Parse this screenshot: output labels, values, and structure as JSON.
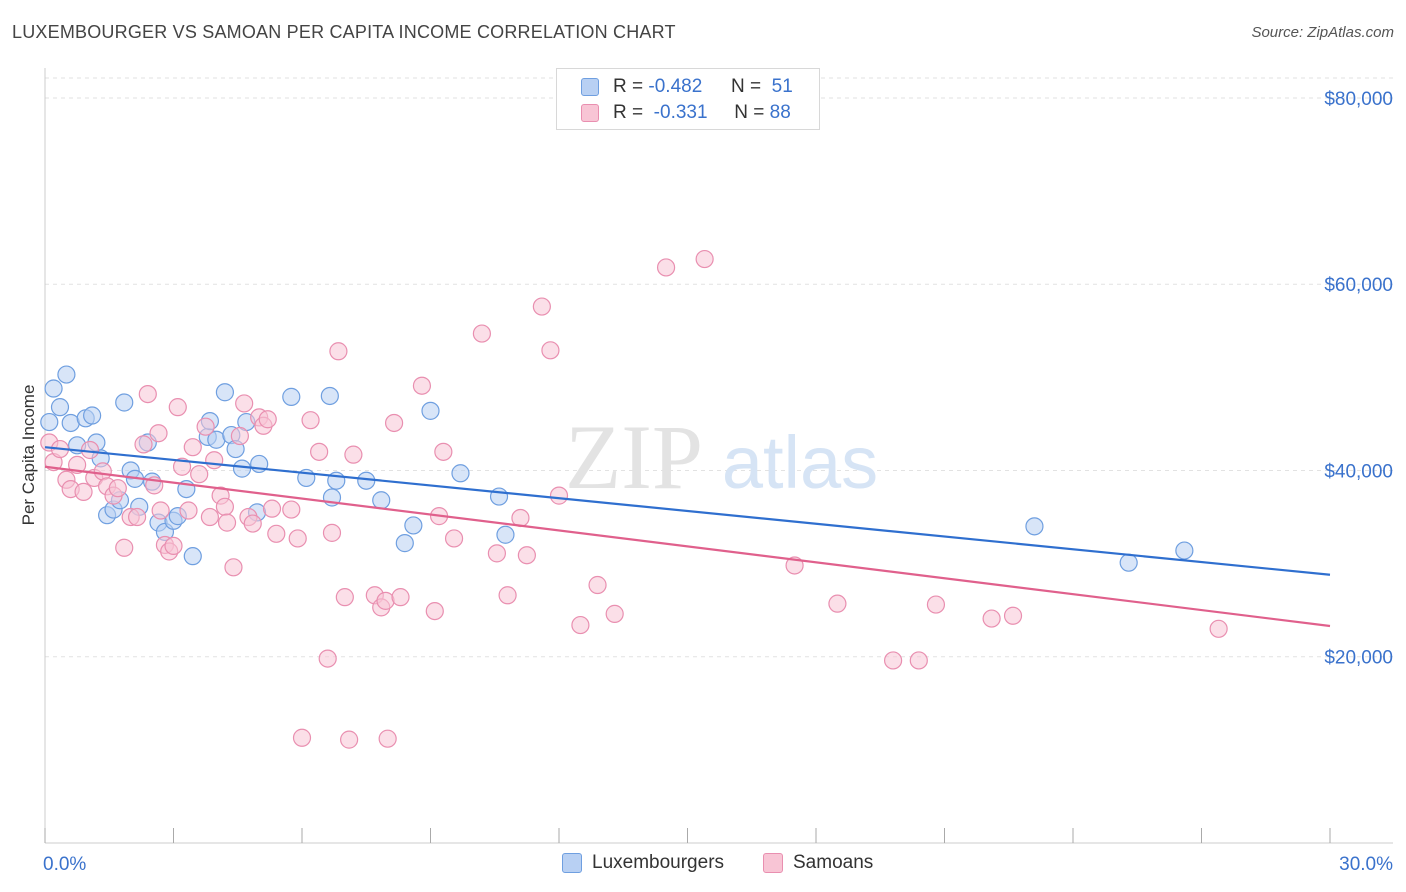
{
  "title": "LUXEMBOURGER VS SAMOAN PER CAPITA INCOME CORRELATION CHART",
  "source": "Source: ZipAtlas.com",
  "watermark": {
    "zip": "ZIP",
    "atlas": "atlas"
  },
  "legend": {
    "rows": [
      {
        "r_label": "R =",
        "r_value": "-0.482",
        "n_label": "N =",
        "n_value": "51",
        "fill": "#b8d0f3",
        "stroke": "#6f9fe0"
      },
      {
        "r_label": "R =",
        "r_value": "-0.331",
        "n_label": "N =",
        "n_value": "88",
        "fill": "#f8c5d5",
        "stroke": "#e98fb0"
      }
    ]
  },
  "bottom_legend": [
    {
      "label": "Luxembourgers",
      "fill": "#b8d0f3",
      "stroke": "#6f9fe0"
    },
    {
      "label": "Samoans",
      "fill": "#f8c5d5",
      "stroke": "#e98fb0"
    }
  ],
  "chart_data": {
    "type": "scatter",
    "title": "LUXEMBOURGER VS SAMOAN PER CAPITA INCOME CORRELATION CHART",
    "xlabel": "",
    "ylabel": "Per Capita Income",
    "xlim": [
      0,
      30
    ],
    "ylim": [
      0,
      83000
    ],
    "x_tick_labels": [
      "0.0%",
      "30.0%"
    ],
    "y_ticks": [
      20000,
      40000,
      60000,
      80000
    ],
    "y_tick_labels": [
      "$20,000",
      "$40,000",
      "$60,000",
      "$80,000"
    ],
    "grid": true,
    "series": [
      {
        "name": "Luxembourgers",
        "color": "#6f9fe0",
        "fill": "#b8d0f3",
        "line_color": "#2f6fcf",
        "trend": {
          "x": [
            0,
            30
          ],
          "y": [
            42500,
            28800
          ]
        },
        "points": [
          [
            0.2,
            48800
          ],
          [
            0.35,
            46800
          ],
          [
            0.5,
            50300
          ],
          [
            0.6,
            45100
          ],
          [
            0.75,
            42700
          ],
          [
            0.95,
            45600
          ],
          [
            1.1,
            45900
          ],
          [
            1.2,
            43000
          ],
          [
            1.3,
            41300
          ],
          [
            1.45,
            35200
          ],
          [
            1.6,
            35800
          ],
          [
            1.75,
            36800
          ],
          [
            1.85,
            47300
          ],
          [
            2.0,
            40000
          ],
          [
            2.1,
            39100
          ],
          [
            2.2,
            36100
          ],
          [
            2.4,
            43000
          ],
          [
            2.5,
            38800
          ],
          [
            2.65,
            34400
          ],
          [
            2.8,
            33400
          ],
          [
            3.0,
            34600
          ],
          [
            3.1,
            35100
          ],
          [
            3.3,
            38000
          ],
          [
            3.45,
            30800
          ],
          [
            3.8,
            43600
          ],
          [
            3.85,
            45300
          ],
          [
            4.0,
            43300
          ],
          [
            4.2,
            48400
          ],
          [
            4.35,
            43800
          ],
          [
            4.45,
            42300
          ],
          [
            4.6,
            40200
          ],
          [
            4.7,
            45200
          ],
          [
            4.95,
            35500
          ],
          [
            5.0,
            40700
          ],
          [
            5.75,
            47900
          ],
          [
            6.1,
            39200
          ],
          [
            6.65,
            48000
          ],
          [
            6.7,
            37100
          ],
          [
            6.8,
            38900
          ],
          [
            7.5,
            38900
          ],
          [
            7.85,
            36800
          ],
          [
            8.4,
            32200
          ],
          [
            8.6,
            34100
          ],
          [
            9.0,
            46400
          ],
          [
            9.7,
            39700
          ],
          [
            10.6,
            37200
          ],
          [
            10.75,
            33100
          ],
          [
            23.1,
            34000
          ],
          [
            25.3,
            30100
          ],
          [
            26.6,
            31400
          ],
          [
            0.1,
            45200
          ]
        ]
      },
      {
        "name": "Samoans",
        "color": "#e98fb0",
        "fill": "#f8c5d5",
        "line_color": "#e0608c",
        "trend": {
          "x": [
            0,
            30
          ],
          "y": [
            40400,
            23300
          ]
        },
        "points": [
          [
            0.1,
            43000
          ],
          [
            0.2,
            40900
          ],
          [
            0.35,
            42300
          ],
          [
            0.5,
            39000
          ],
          [
            0.6,
            38000
          ],
          [
            0.75,
            40600
          ],
          [
            0.9,
            37700
          ],
          [
            1.05,
            42200
          ],
          [
            1.15,
            39200
          ],
          [
            1.35,
            39900
          ],
          [
            1.45,
            38300
          ],
          [
            1.6,
            37300
          ],
          [
            1.7,
            38100
          ],
          [
            1.85,
            31700
          ],
          [
            2.0,
            35000
          ],
          [
            2.15,
            35000
          ],
          [
            2.3,
            42800
          ],
          [
            2.4,
            48200
          ],
          [
            2.55,
            38400
          ],
          [
            2.65,
            44000
          ],
          [
            2.8,
            32000
          ],
          [
            2.9,
            31300
          ],
          [
            3.0,
            31900
          ],
          [
            3.1,
            46800
          ],
          [
            3.2,
            40400
          ],
          [
            3.35,
            35700
          ],
          [
            3.45,
            42500
          ],
          [
            3.6,
            39600
          ],
          [
            3.75,
            44700
          ],
          [
            3.85,
            35000
          ],
          [
            3.95,
            41100
          ],
          [
            4.1,
            37300
          ],
          [
            4.2,
            36100
          ],
          [
            4.25,
            34400
          ],
          [
            4.4,
            29600
          ],
          [
            4.55,
            43700
          ],
          [
            4.65,
            47200
          ],
          [
            4.75,
            35000
          ],
          [
            4.85,
            34300
          ],
          [
            5.0,
            45700
          ],
          [
            5.1,
            44800
          ],
          [
            5.2,
            45500
          ],
          [
            5.4,
            33200
          ],
          [
            5.75,
            35800
          ],
          [
            5.9,
            32700
          ],
          [
            6.2,
            45400
          ],
          [
            6.4,
            42000
          ],
          [
            6.6,
            19800
          ],
          [
            6.7,
            33300
          ],
          [
            6.85,
            52800
          ],
          [
            7.0,
            26400
          ],
          [
            7.2,
            41700
          ],
          [
            7.1,
            11100
          ],
          [
            7.7,
            26600
          ],
          [
            7.85,
            25300
          ],
          [
            7.95,
            26000
          ],
          [
            8.3,
            26400
          ],
          [
            8.15,
            45100
          ],
          [
            8.8,
            49100
          ],
          [
            9.1,
            24900
          ],
          [
            9.3,
            42000
          ],
          [
            9.55,
            32700
          ],
          [
            10.2,
            54700
          ],
          [
            10.55,
            31100
          ],
          [
            10.8,
            26600
          ],
          [
            11.1,
            34900
          ],
          [
            11.25,
            30900
          ],
          [
            11.6,
            57600
          ],
          [
            11.8,
            52900
          ],
          [
            12.0,
            37300
          ],
          [
            12.5,
            23400
          ],
          [
            12.9,
            27700
          ],
          [
            13.3,
            24600
          ],
          [
            14.5,
            61800
          ],
          [
            15.4,
            62700
          ],
          [
            17.5,
            29800
          ],
          [
            18.5,
            25700
          ],
          [
            19.8,
            19600
          ],
          [
            20.4,
            19600
          ],
          [
            20.8,
            25600
          ],
          [
            22.1,
            24100
          ],
          [
            22.6,
            24400
          ],
          [
            27.4,
            23000
          ],
          [
            8.0,
            11200
          ],
          [
            6.0,
            11300
          ],
          [
            9.2,
            35100
          ],
          [
            2.7,
            35700
          ],
          [
            5.3,
            35900
          ]
        ]
      }
    ]
  }
}
